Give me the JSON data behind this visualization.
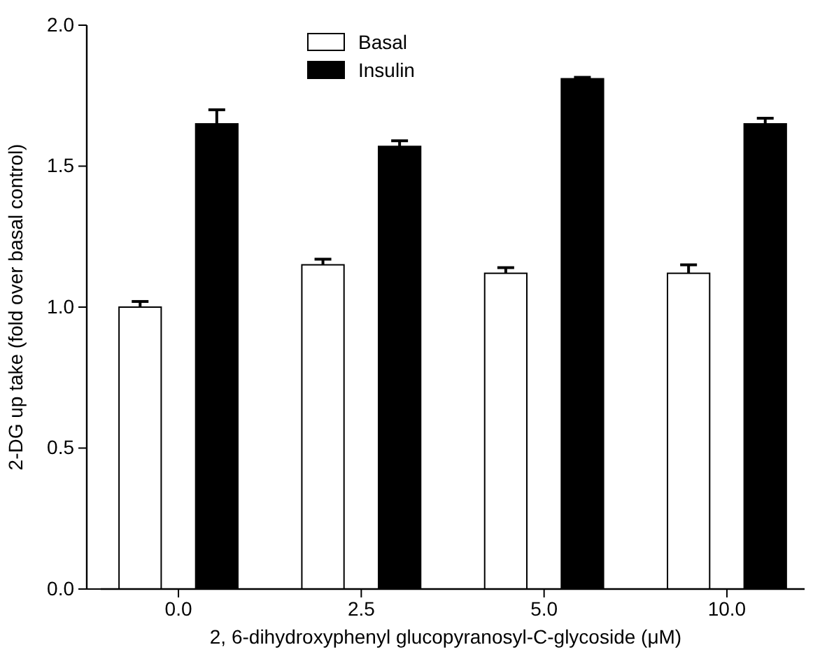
{
  "chart_data": {
    "type": "bar",
    "xlabel": "2, 6-dihydroxyphenyl glucopyranosyl-C-glycoside (μM)",
    "ylabel": "2-DG up take (fold over basal control)",
    "categories": [
      "0.0",
      "2.5",
      "5.0",
      "10.0"
    ],
    "series": [
      {
        "name": "Basal",
        "color": "#ffffff",
        "values": [
          1.0,
          1.15,
          1.12,
          1.12
        ],
        "errors": [
          [
            1.0,
            1.02
          ],
          [
            1.15,
            1.17
          ],
          [
            1.12,
            1.14
          ],
          [
            1.12,
            1.15
          ]
        ]
      },
      {
        "name": "Insulin",
        "color": "#000000",
        "values": [
          1.65,
          1.57,
          1.81,
          1.65
        ],
        "errors": [
          [
            1.65,
            1.7
          ],
          [
            1.57,
            1.59
          ],
          [
            1.81,
            1.815
          ],
          [
            1.65,
            1.67
          ]
        ]
      }
    ],
    "ylim": [
      0,
      2
    ],
    "yticks": [
      {
        "value": 0,
        "label": "0.0"
      },
      {
        "value": 0.5,
        "label": "0.5"
      },
      {
        "value": 1,
        "label": "1.0"
      },
      {
        "value": 1.5,
        "label": "1.5"
      },
      {
        "value": 2,
        "label": "2.0"
      }
    ],
    "grid": false,
    "legend": "top"
  }
}
